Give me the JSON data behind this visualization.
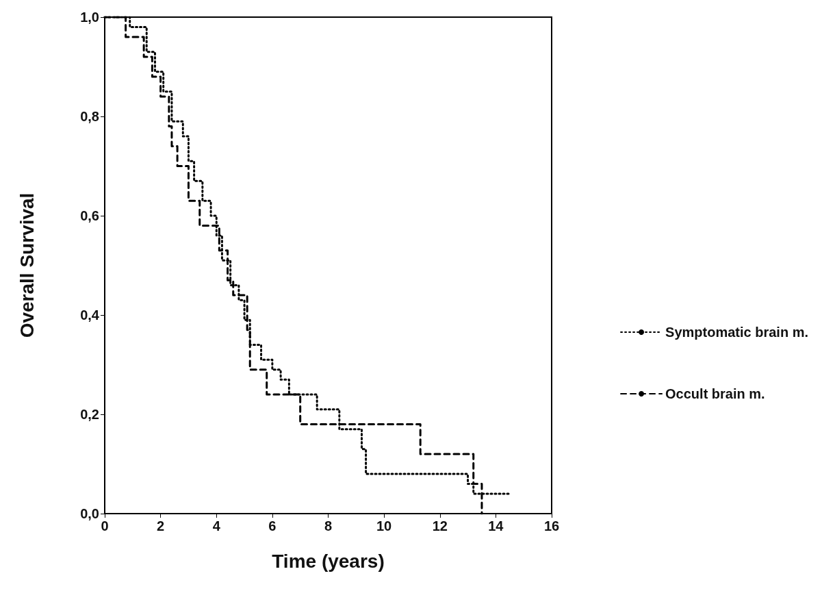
{
  "chart_data": {
    "type": "step",
    "xlabel": "Time (years)",
    "ylabel": "Overall Survival",
    "xlim": [
      0,
      16
    ],
    "xticks": [
      0,
      2,
      4,
      6,
      8,
      10,
      12,
      14,
      16
    ],
    "ylim": [
      0,
      1
    ],
    "yticks": [
      {
        "value": 0,
        "label": "0,0"
      },
      {
        "value": 0.2,
        "label": "0,2"
      },
      {
        "value": 0.4,
        "label": "0,4"
      },
      {
        "value": 0.6,
        "label": "0,6"
      },
      {
        "value": 0.8,
        "label": "0,8"
      },
      {
        "value": 1,
        "label": "1,0"
      }
    ],
    "grid": false,
    "legend": "right",
    "marker": "none",
    "series": [
      {
        "name": "Symptomatic brain m.",
        "color": "#000000",
        "line_style": "dotted",
        "x": [
          0,
          0.9,
          1.5,
          1.8,
          2.1,
          2.4,
          2.8,
          3.0,
          3.2,
          3.5,
          3.8,
          4.0,
          4.2,
          4.5,
          4.8,
          5.0,
          5.2,
          5.6,
          6.0,
          6.3,
          6.6,
          7.6,
          8.4,
          9.2,
          9.35,
          13.0,
          13.2,
          14.5
        ],
        "values": [
          1,
          0.98,
          0.93,
          0.89,
          0.85,
          0.79,
          0.76,
          0.71,
          0.67,
          0.63,
          0.6,
          0.56,
          0.51,
          0.46,
          0.43,
          0.39,
          0.34,
          0.31,
          0.29,
          0.27,
          0.24,
          0.21,
          0.17,
          0.13,
          0.08,
          0.06,
          0.04,
          0.04
        ]
      },
      {
        "name": "Occult brain m.",
        "color": "#000000",
        "line_style": "dashed",
        "x": [
          0,
          0.75,
          1.4,
          1.7,
          2.0,
          2.3,
          2.4,
          2.6,
          3.0,
          3.4,
          4.1,
          4.4,
          4.6,
          5.1,
          5.2,
          5.8,
          7.0,
          11.3,
          13.2,
          13.5
        ],
        "values": [
          1,
          0.96,
          0.92,
          0.88,
          0.84,
          0.78,
          0.74,
          0.7,
          0.63,
          0.58,
          0.53,
          0.47,
          0.44,
          0.37,
          0.29,
          0.24,
          0.18,
          0.12,
          0.06,
          0
        ]
      }
    ]
  }
}
